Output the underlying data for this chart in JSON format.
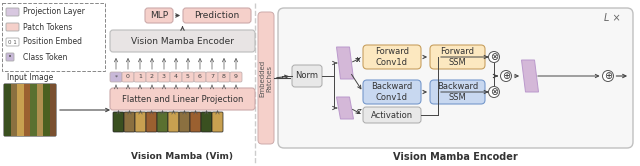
{
  "fig_width": 6.4,
  "fig_height": 1.66,
  "dpi": 100,
  "bg_color": "#ffffff",
  "legend_items": [
    {
      "label": "Projection Layer",
      "color": "#d8c8e0"
    },
    {
      "label": "Patch Tokens",
      "color": "#f5d0ca"
    },
    {
      "label": "Position Embed",
      "color": "#ffffff"
    },
    {
      "label": "Class Token",
      "color": "#b0a0c0"
    }
  ],
  "left_panel_title": "Vision Mamba (Vim)",
  "right_panel_title": "Vision Mamba Encoder",
  "mlp_color": "#f5d0ca",
  "prediction_color": "#f5d0ca",
  "encoder_color": "#e8e4e4",
  "flatten_color": "#f5d0ca",
  "patch_token_color": "#f5d0ca",
  "class_token_color": "#c8b8d8",
  "proj_color": "#d4b8d8",
  "forward_conv_color": "#fce8c0",
  "forward_ssm_color": "#fce8c0",
  "backward_conv_color": "#c8d8f0",
  "backward_ssm_color": "#c8d8f0",
  "activation_color": "#e8e8e8",
  "norm_color": "#e8e8e8",
  "embedded_color": "#f5d0ca",
  "outer_box_color": "#e4e4e4",
  "arrow_color": "#444444",
  "text_color": "#333333",
  "divider_color": "#cccccc"
}
